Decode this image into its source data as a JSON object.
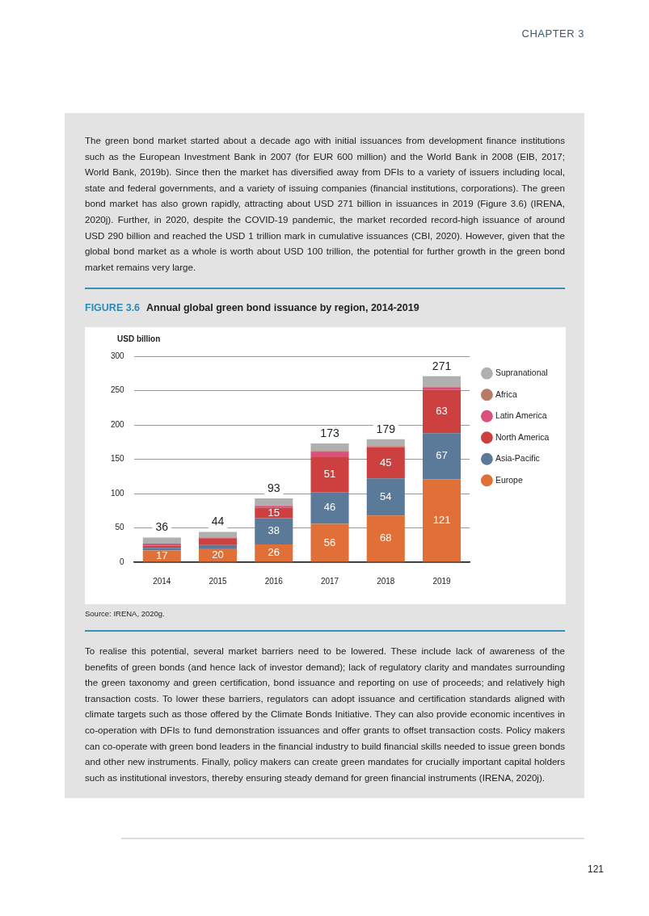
{
  "chart_data": {
    "type": "bar",
    "title": "Annual global green bond issuance by region, 2014-2019",
    "ylabel": "USD billion",
    "annotations": [
      "CHAPTER 3",
      "The green bond market started about a decade ago with initial issuances from development finance institutions such as the European Investment Bank in 2007 (for EUR 600 million) and the World Bank in 2008 (EIB, 2017; World Bank, 2019b). Since then the market has diversified away from DFIs to a variety of issuers including local, state and federal governments, and a variety of issuing companies (financial institutions, corporations). The green bond market has also grown rapidly, attracting about USD 271 billion in issuances in 2019 (Figure 3.6) (IRENA, 2020j). Further, in 2020, despite the COVID-19 pandemic, the market recorded record-high issuance of around USD 290 billion and reached the USD 1 trillion mark in cumulative issuances (CBI, 2020). However, given that the global bond market as a whole is worth about USD 100 trillion, the potential for further growth in the green bond market remains very large.",
      "FIGURE 3.6",
      "Source: IRENA, 2020g.",
      "To realise this potential, several market barriers need to be lowered. These include lack of awareness of the benefits of green bonds (and hence lack of investor demand); lack of regulatory clarity and mandates surrounding the green taxonomy and green certification, bond issuance and reporting on use of proceeds; and relatively high transaction costs. To lower these barriers, regulators can adopt issuance and certification standards aligned with climate targets such as those offered by the Climate Bonds Initiative. They can also provide economic incentives in co-operation with DFIs to fund demonstration issuances and offer grants to offset transaction costs. Policy makers can co-operate with green bond leaders in the financial industry to build financial skills needed to issue green bonds and other new instruments. Finally, policy makers can create green mandates for crucially important capital holders such as institutional investors, thereby ensuring steady demand for green financial instruments (IRENA, 2020j).",
      "121"
    ],
    "categories": [
      "2014",
      "2015",
      "2016",
      "2017",
      "2018",
      "2019"
    ],
    "stacked": true,
    "series": [
      {
        "name": "Europe",
        "color": "#e07038",
        "values": [
          17,
          20,
          26,
          56,
          68,
          121
        ],
        "value_labels": [
          "17",
          "20",
          "26",
          "56",
          "68",
          "121"
        ]
      },
      {
        "name": "Asia-Pacific",
        "color": "#5b7a99",
        "values": [
          4,
          5,
          38,
          46,
          54,
          67
        ],
        "value_labels": [
          null,
          null,
          "38",
          "46",
          "54",
          "67"
        ]
      },
      {
        "name": "North America",
        "color": "#cc4040",
        "values": [
          3,
          10,
          15,
          51,
          45,
          63
        ],
        "value_labels": [
          null,
          null,
          "15",
          "51",
          "45",
          "63"
        ]
      },
      {
        "name": "Latin America",
        "color": "#d9507a",
        "values": [
          3,
          1,
          3,
          7,
          1,
          4
        ]
      },
      {
        "name": "Africa",
        "color": "#b87a68",
        "values": [
          0,
          0,
          1,
          2,
          1,
          1
        ]
      },
      {
        "name": "Supranational",
        "color": "#b0b0b0",
        "values": [
          9,
          8,
          10,
          11,
          10,
          15
        ]
      }
    ],
    "totals": [
      "36",
      "44",
      "93",
      "173",
      "179",
      "271"
    ],
    "ylim": [
      0,
      300
    ],
    "yticks": [
      0,
      50,
      100,
      150,
      200,
      250,
      300
    ],
    "grid": "y",
    "legend": "right"
  }
}
